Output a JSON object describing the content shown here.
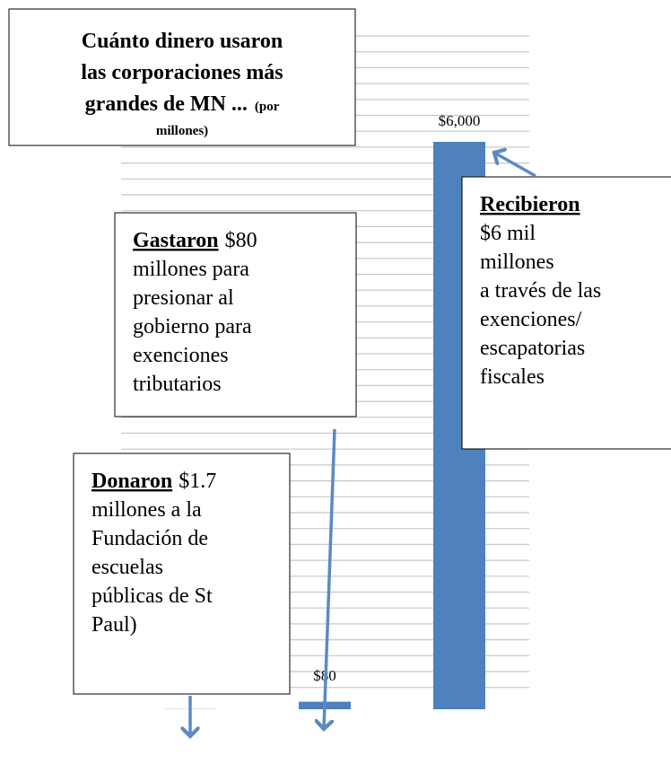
{
  "chart_data": {
    "type": "bar",
    "title": [
      "Cuánto dinero usaron",
      "las corporaciones más",
      "grandes de MN ..."
    ],
    "title_note": [
      "(por",
      "millones)"
    ],
    "values": [
      1.7,
      80,
      6000
    ],
    "value_labels": [
      "$1.7",
      "$80",
      "$6,000"
    ],
    "color": "#4f81bd",
    "ylim": [
      0,
      6000
    ],
    "grid": true,
    "annotations": [
      {
        "lead": "Gastaron",
        "lead_inline": true,
        "lines": [
          "$80",
          "millones para",
          "presionar al",
          "gobierno para",
          "exenciones",
          "tributarios"
        ]
      },
      {
        "lead": "Donaron",
        "lead_inline": true,
        "lines": [
          "$1.7",
          "millones a la",
          "Fundación de",
          "escuelas",
          "públicas de St",
          "Paul)"
        ]
      },
      {
        "lead": "Recibieron",
        "lead_inline": false,
        "lines": [
          "$6 mil",
          "millones",
          "a través de las",
          "exenciones/",
          "escapatorias",
          "fiscales"
        ]
      }
    ]
  }
}
